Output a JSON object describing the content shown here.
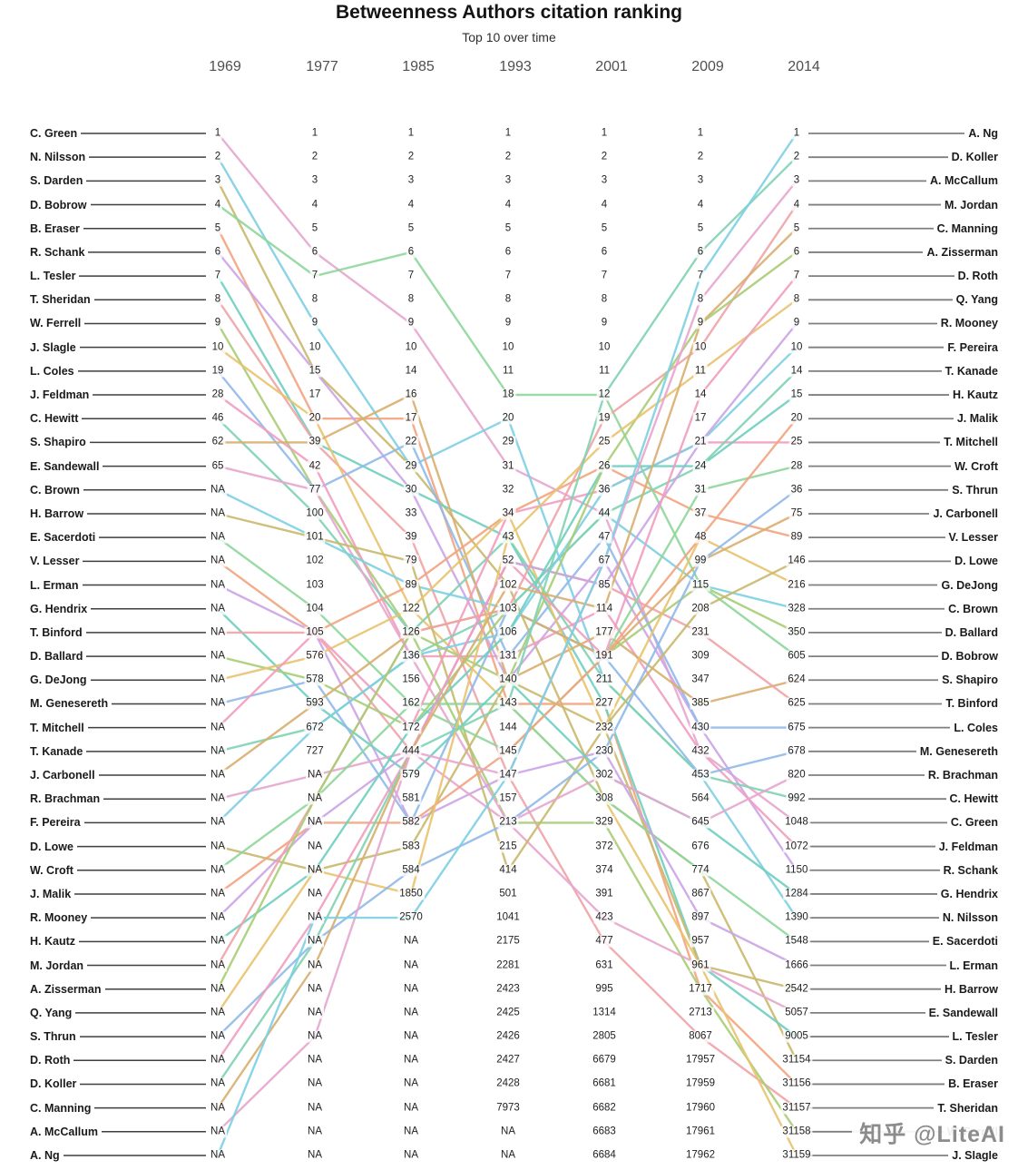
{
  "title": "Betweenness Authors citation ranking",
  "subtitle": "Top 10 over time",
  "watermark": "知乎 @LiteAI",
  "chart_data": {
    "type": "line",
    "subtype": "bump-rank-chart",
    "title": "Betweenness Authors citation ranking",
    "subtitle": "Top 10 over time",
    "years": [
      "1969",
      "1977",
      "1985",
      "1993",
      "2001",
      "2009",
      "2014"
    ],
    "na_label": "NA",
    "legend": "none",
    "grid": false,
    "left_axis_note": "authors ordered by 1969 rank",
    "right_axis_note": "authors ordered by 2014 rank",
    "rows": [
      {
        "left": "C. Green",
        "right": "A. Ng",
        "values": [
          "1",
          "1",
          "1",
          "1",
          "1",
          "1",
          "1"
        ]
      },
      {
        "left": "N. Nilsson",
        "right": "D. Koller",
        "values": [
          "2",
          "2",
          "2",
          "2",
          "2",
          "2",
          "2"
        ]
      },
      {
        "left": "S. Darden",
        "right": "A. McCallum",
        "values": [
          "3",
          "3",
          "3",
          "3",
          "3",
          "3",
          "3"
        ]
      },
      {
        "left": "D. Bobrow",
        "right": "M. Jordan",
        "values": [
          "4",
          "4",
          "4",
          "4",
          "4",
          "4",
          "4"
        ]
      },
      {
        "left": "B. Eraser",
        "right": "C. Manning",
        "values": [
          "5",
          "5",
          "5",
          "5",
          "5",
          "5",
          "5"
        ]
      },
      {
        "left": "R. Schank",
        "right": "A. Zisserman",
        "values": [
          "6",
          "6",
          "6",
          "6",
          "6",
          "6",
          "6"
        ]
      },
      {
        "left": "L. Tesler",
        "right": "D. Roth",
        "values": [
          "7",
          "7",
          "7",
          "7",
          "7",
          "7",
          "7"
        ]
      },
      {
        "left": "T. Sheridan",
        "right": "Q. Yang",
        "values": [
          "8",
          "8",
          "8",
          "8",
          "8",
          "8",
          "8"
        ]
      },
      {
        "left": "W. Ferrell",
        "right": "R. Mooney",
        "values": [
          "9",
          "9",
          "9",
          "9",
          "9",
          "9",
          "9"
        ]
      },
      {
        "left": "J. Slagle",
        "right": "F. Pereira",
        "values": [
          "10",
          "10",
          "10",
          "10",
          "10",
          "10",
          "10"
        ]
      },
      {
        "left": "L. Coles",
        "right": "T. Kanade",
        "values": [
          "19",
          "15",
          "14",
          "11",
          "11",
          "11",
          "14"
        ]
      },
      {
        "left": "J. Feldman",
        "right": "H. Kautz",
        "values": [
          "28",
          "17",
          "16",
          "18",
          "12",
          "14",
          "15"
        ]
      },
      {
        "left": "C. Hewitt",
        "right": "J. Malik",
        "values": [
          "46",
          "20",
          "17",
          "20",
          "19",
          "17",
          "20"
        ]
      },
      {
        "left": "S. Shapiro",
        "right": "T. Mitchell",
        "values": [
          "62",
          "39",
          "22",
          "29",
          "25",
          "21",
          "25"
        ]
      },
      {
        "left": "E. Sandewall",
        "right": "W. Croft",
        "values": [
          "65",
          "42",
          "29",
          "31",
          "26",
          "24",
          "28"
        ]
      },
      {
        "left": "C. Brown",
        "right": "S. Thrun",
        "values": [
          "NA",
          "77",
          "30",
          "32",
          "36",
          "31",
          "36"
        ]
      },
      {
        "left": "H. Barrow",
        "right": "J. Carbonell",
        "values": [
          "NA",
          "100",
          "33",
          "34",
          "44",
          "37",
          "75"
        ]
      },
      {
        "left": "E. Sacerdoti",
        "right": "V. Lesser",
        "values": [
          "NA",
          "101",
          "39",
          "43",
          "47",
          "48",
          "89"
        ]
      },
      {
        "left": "V. Lesser",
        "right": "D. Lowe",
        "values": [
          "NA",
          "102",
          "79",
          "52",
          "67",
          "99",
          "146"
        ]
      },
      {
        "left": "L. Erman",
        "right": "G. DeJong",
        "values": [
          "NA",
          "103",
          "89",
          "102",
          "85",
          "115",
          "216"
        ]
      },
      {
        "left": "G. Hendrix",
        "right": "C. Brown",
        "values": [
          "NA",
          "104",
          "122",
          "103",
          "114",
          "208",
          "328"
        ]
      },
      {
        "left": "T. Binford",
        "right": "D. Ballard",
        "values": [
          "NA",
          "105",
          "126",
          "106",
          "177",
          "231",
          "350"
        ]
      },
      {
        "left": "D. Ballard",
        "right": "D. Bobrow",
        "values": [
          "NA",
          "576",
          "136",
          "131",
          "191",
          "309",
          "605"
        ]
      },
      {
        "left": "G. DeJong",
        "right": "S. Shapiro",
        "values": [
          "NA",
          "578",
          "156",
          "140",
          "211",
          "347",
          "624"
        ]
      },
      {
        "left": "M. Genesereth",
        "right": "T. Binford",
        "values": [
          "NA",
          "593",
          "162",
          "143",
          "227",
          "385",
          "625"
        ]
      },
      {
        "left": "T. Mitchell",
        "right": "L. Coles",
        "values": [
          "NA",
          "672",
          "172",
          "144",
          "232",
          "430",
          "675"
        ]
      },
      {
        "left": "T. Kanade",
        "right": "M. Genesereth",
        "values": [
          "NA",
          "727",
          "444",
          "145",
          "230",
          "432",
          "678"
        ]
      },
      {
        "left": "J. Carbonell",
        "right": "R. Brachman",
        "values": [
          "NA",
          "NA",
          "579",
          "147",
          "302",
          "453",
          "820"
        ]
      },
      {
        "left": "R. Brachman",
        "right": "C. Hewitt",
        "values": [
          "NA",
          "NA",
          "581",
          "157",
          "308",
          "564",
          "992"
        ]
      },
      {
        "left": "F. Pereira",
        "right": "C. Green",
        "values": [
          "NA",
          "NA",
          "582",
          "213",
          "329",
          "645",
          "1048"
        ]
      },
      {
        "left": "D. Lowe",
        "right": "J. Feldman",
        "values": [
          "NA",
          "NA",
          "583",
          "215",
          "372",
          "676",
          "1072"
        ]
      },
      {
        "left": "W. Croft",
        "right": "R. Schank",
        "values": [
          "NA",
          "NA",
          "584",
          "414",
          "374",
          "774",
          "1150"
        ]
      },
      {
        "left": "J. Malik",
        "right": "G. Hendrix",
        "values": [
          "NA",
          "NA",
          "1850",
          "501",
          "391",
          "867",
          "1284"
        ]
      },
      {
        "left": "R. Mooney",
        "right": "N. Nilsson",
        "values": [
          "NA",
          "NA",
          "2570",
          "1041",
          "423",
          "897",
          "1390"
        ]
      },
      {
        "left": "H. Kautz",
        "right": "E. Sacerdoti",
        "values": [
          "NA",
          "NA",
          "NA",
          "2175",
          "477",
          "957",
          "1548"
        ]
      },
      {
        "left": "M. Jordan",
        "right": "L. Erman",
        "values": [
          "NA",
          "NA",
          "NA",
          "2281",
          "631",
          "961",
          "1666"
        ]
      },
      {
        "left": "A. Zisserman",
        "right": "H. Barrow",
        "values": [
          "NA",
          "NA",
          "NA",
          "2423",
          "995",
          "1717",
          "2542"
        ]
      },
      {
        "left": "Q. Yang",
        "right": "E. Sandewall",
        "values": [
          "NA",
          "NA",
          "NA",
          "2425",
          "1314",
          "2713",
          "5057"
        ]
      },
      {
        "left": "S. Thrun",
        "right": "L. Tesler",
        "values": [
          "NA",
          "NA",
          "NA",
          "2426",
          "2805",
          "8067",
          "9005"
        ]
      },
      {
        "left": "D. Roth",
        "right": "S. Darden",
        "values": [
          "NA",
          "NA",
          "NA",
          "2427",
          "6679",
          "17957",
          "31154"
        ]
      },
      {
        "left": "D. Koller",
        "right": "B. Eraser",
        "values": [
          "NA",
          "NA",
          "NA",
          "2428",
          "6681",
          "17959",
          "31156"
        ]
      },
      {
        "left": "C. Manning",
        "right": "T. Sheridan",
        "values": [
          "NA",
          "NA",
          "NA",
          "7973",
          "6682",
          "17960",
          "31157"
        ]
      },
      {
        "left": "A. McCallum",
        "right": "W. Ferrell",
        "values": [
          "NA",
          "NA",
          "NA",
          "NA",
          "6683",
          "17961",
          "31158"
        ]
      },
      {
        "left": "A. Ng",
        "right": "J. Slagle",
        "values": [
          "NA",
          "NA",
          "NA",
          "NA",
          "6684",
          "17962",
          "31159"
        ]
      }
    ],
    "palette": [
      "#e6a6cd",
      "#7dcfe3",
      "#c9b86b",
      "#8ed69b",
      "#f2a47f",
      "#cba4e6",
      "#6fcfc0",
      "#f0a3a6",
      "#a9cc75",
      "#e9c36e",
      "#90b9ea",
      "#ef9dbf",
      "#7fd3b2",
      "#d8ae6f"
    ],
    "connector_color_left": "#3f3f3f",
    "connector_color_right": "#7f7f7f",
    "text_color": "#1a1a1a"
  }
}
